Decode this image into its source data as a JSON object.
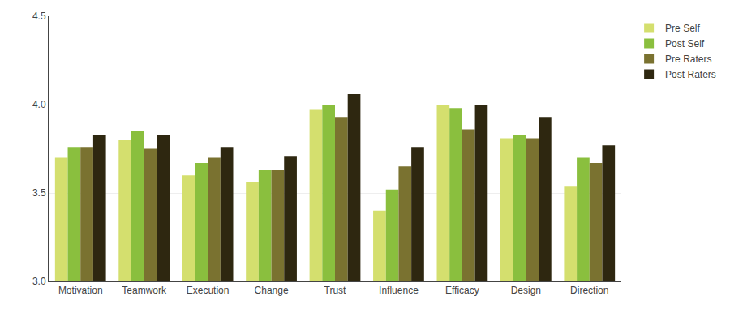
{
  "chart_data": {
    "type": "bar",
    "categories": [
      "Motivation",
      "Teamwork",
      "Execution",
      "Change",
      "Trust",
      "Influence",
      "Efficacy",
      "Design",
      "Direction"
    ],
    "series": [
      {
        "name": "Pre Self",
        "color": "#d4df6e",
        "values": [
          3.7,
          3.8,
          3.6,
          3.56,
          3.97,
          3.4,
          4.0,
          3.81,
          3.54
        ]
      },
      {
        "name": "Post Self",
        "color": "#8abf3e",
        "values": [
          3.76,
          3.85,
          3.67,
          3.63,
          4.0,
          3.52,
          3.98,
          3.83,
          3.7
        ]
      },
      {
        "name": "Pre Raters",
        "color": "#7a7230",
        "values": [
          3.76,
          3.75,
          3.7,
          3.63,
          3.93,
          3.65,
          3.86,
          3.81,
          3.67
        ]
      },
      {
        "name": "Post Raters",
        "color": "#2e2710",
        "values": [
          3.83,
          3.83,
          3.76,
          3.71,
          4.06,
          3.76,
          4.0,
          3.93,
          3.77
        ]
      }
    ],
    "ylim": [
      3.0,
      4.5
    ],
    "yticks": [
      {
        "value": 3.0,
        "label": "3.0"
      },
      3.5,
      {
        "value": 4.0,
        "label": "4.0"
      },
      4.5
    ],
    "grid": true,
    "legend": "upper right"
  }
}
